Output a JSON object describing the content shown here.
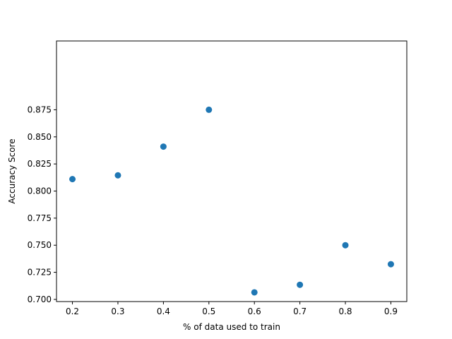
{
  "chart_data": {
    "type": "scatter",
    "title": "",
    "xlabel": "% of data used to train",
    "ylabel": "Accuracy Score",
    "xlim": [
      0.165,
      0.935
    ],
    "ylim": [
      0.698,
      0.9385
    ],
    "xticks": [
      0.2,
      0.3,
      0.4,
      0.5,
      0.6,
      0.7,
      0.8,
      0.9
    ],
    "xtick_labels": [
      "0.2",
      "0.3",
      "0.4",
      "0.5",
      "0.6",
      "0.7",
      "0.8",
      "0.9"
    ],
    "yticks": [
      0.7,
      0.725,
      0.75,
      0.775,
      0.8,
      0.825,
      0.85,
      0.875
    ],
    "ytick_labels": [
      "0.700",
      "0.725",
      "0.750",
      "0.775",
      "0.800",
      "0.825",
      "0.850",
      "0.875"
    ],
    "grid": false,
    "color": "#1f77b4",
    "points": [
      {
        "x": 0.2,
        "y": 0.811
      },
      {
        "x": 0.3,
        "y": 0.8145
      },
      {
        "x": 0.4,
        "y": 0.841
      },
      {
        "x": 0.5,
        "y": 0.875
      },
      {
        "x": 0.6,
        "y": 0.7065
      },
      {
        "x": 0.7,
        "y": 0.7135
      },
      {
        "x": 0.8,
        "y": 0.75
      },
      {
        "x": 0.9,
        "y": 0.7325
      }
    ]
  }
}
